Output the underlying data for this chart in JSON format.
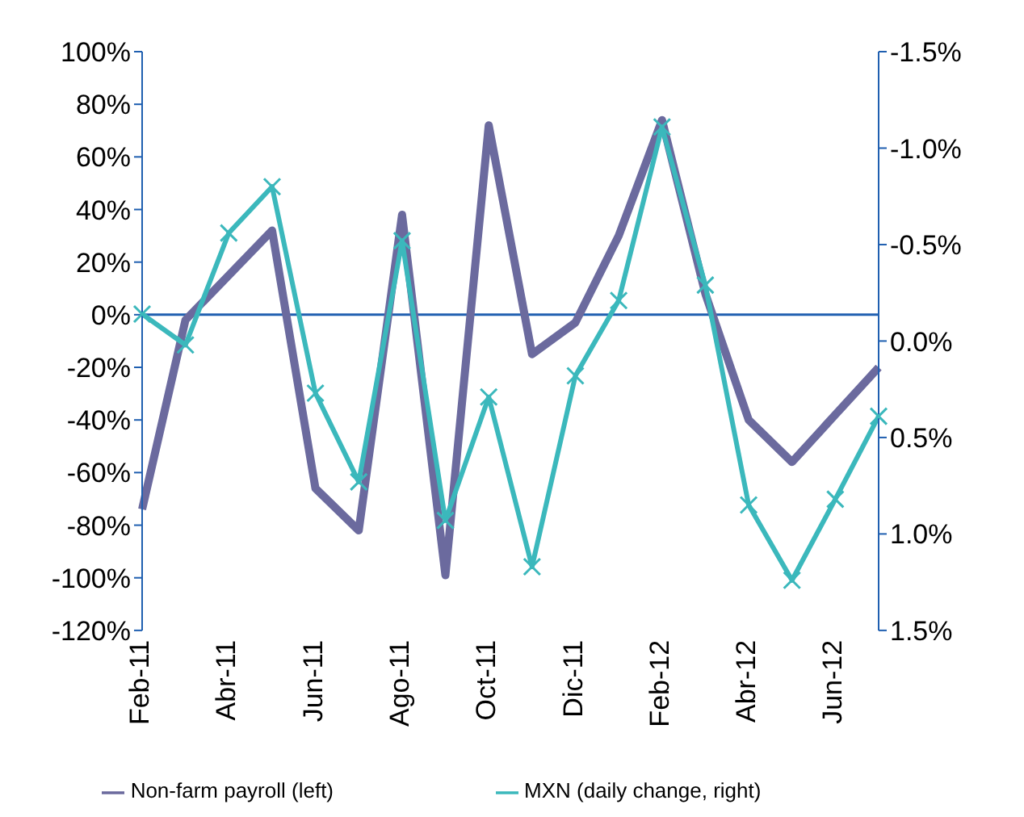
{
  "chart_data": {
    "type": "line",
    "categories": [
      "Feb-11",
      null,
      "Abr-11",
      null,
      "Jun-11",
      null,
      "Ago-11",
      null,
      "Oct-11",
      null,
      "Dic-11",
      null,
      "Feb-12",
      null,
      "Abr-12",
      null,
      "Jun-12",
      null
    ],
    "series": [
      {
        "name": "Non-farm payroll (left)",
        "color": "#6b6a9e",
        "marker": "none",
        "values": [
          -74,
          -2,
          15,
          32,
          -66,
          -82,
          38,
          -99,
          72,
          -15,
          -3,
          30,
          74,
          8,
          -40,
          -56,
          -38,
          -20
        ]
      },
      {
        "name": "MXN (daily change, right)",
        "color": "#3bb8bc",
        "axis": "y2",
        "marker": "cross",
        "values": [
          -0.14,
          0.02,
          -0.56,
          -0.8,
          0.27,
          0.73,
          -0.52,
          0.93,
          0.29,
          1.17,
          0.18,
          -0.21,
          -1.11,
          -0.29,
          0.85,
          1.24,
          0.82,
          0.39
        ]
      }
    ],
    "ylim": [
      -120,
      100
    ],
    "yticks": [
      {
        "value": -120,
        "label": "-120%"
      },
      {
        "value": -100,
        "label": "-100%"
      },
      {
        "value": -80,
        "label": "-80%"
      },
      {
        "value": -60,
        "label": "-60%"
      },
      {
        "value": -40,
        "label": "-40%"
      },
      {
        "value": -20,
        "label": "-20%"
      },
      {
        "value": 0,
        "label": "0%"
      },
      {
        "value": 20,
        "label": "20%"
      },
      {
        "value": 40,
        "label": "40%"
      },
      {
        "value": 60,
        "label": "60%"
      },
      {
        "value": 80,
        "label": "80%"
      },
      {
        "value": 100,
        "label": "100%"
      }
    ],
    "y2lim": [
      1.5,
      -1.5
    ],
    "y2ticks": [
      {
        "value": 1.5,
        "label": "1.5%"
      },
      {
        "value": 1.0,
        "label": "1.0%"
      },
      {
        "value": 0.5,
        "label": "0.5%"
      },
      {
        "value": 0,
        "label": "0.0%"
      },
      {
        "value": -0.5,
        "label": "-0.5%"
      },
      {
        "value": -1.0,
        "label": "-1.0%"
      },
      {
        "value": -1.5,
        "label": "-1.5%"
      }
    ],
    "grid": false,
    "ref_lines": [
      {
        "axis": "y",
        "value": 0,
        "color": "#1f5fb0"
      }
    ],
    "legend": "bottom",
    "line_style": "solid"
  }
}
